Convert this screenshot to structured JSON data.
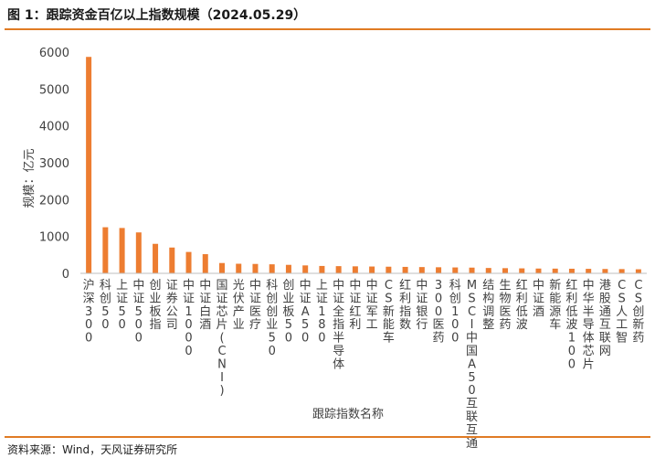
{
  "header": {
    "title": "图 1：跟踪资金百亿以上指数规模（2024.05.29）"
  },
  "footer": {
    "source": "资料来源：Wind，天风证券研究所"
  },
  "colors": {
    "bar": "#ED7D31",
    "rule": "#E07B24",
    "axis": "#BFBFBF",
    "text": "#404040"
  },
  "chart_data": {
    "type": "bar",
    "xlabel": "跟踪指数名称",
    "ylabel": "规模：亿元",
    "ylim": [
      0,
      6000
    ],
    "yticks": [
      0,
      1000,
      2000,
      3000,
      4000,
      5000,
      6000
    ],
    "grid": false,
    "categories": [
      "沪深300",
      "科创50",
      "上证50",
      "中证500",
      "创业板指",
      "证券公司",
      "中证1000",
      "中证白酒",
      "国证芯片(CNI)",
      "光伏产业",
      "中证医疗",
      "科创创业50",
      "创业板50",
      "中证A50",
      "上证180",
      "中证全指半导体",
      "中证红利",
      "中证军工",
      "CS新能车",
      "红利指数",
      "中证银行",
      "300医药",
      "科创100",
      "MSCI中国A50互联互通",
      "结构调整",
      "生物医药",
      "红利低波",
      "中证酒",
      "新能源车",
      "红利低波100",
      "中华半导体芯片",
      "港股通互联网",
      "CS人工智",
      "CS创新药"
    ],
    "values": [
      5870,
      1250,
      1230,
      1110,
      800,
      700,
      580,
      520,
      280,
      260,
      255,
      245,
      230,
      215,
      200,
      195,
      190,
      185,
      180,
      175,
      170,
      165,
      160,
      155,
      145,
      140,
      135,
      130,
      128,
      125,
      122,
      118,
      115,
      110
    ]
  }
}
